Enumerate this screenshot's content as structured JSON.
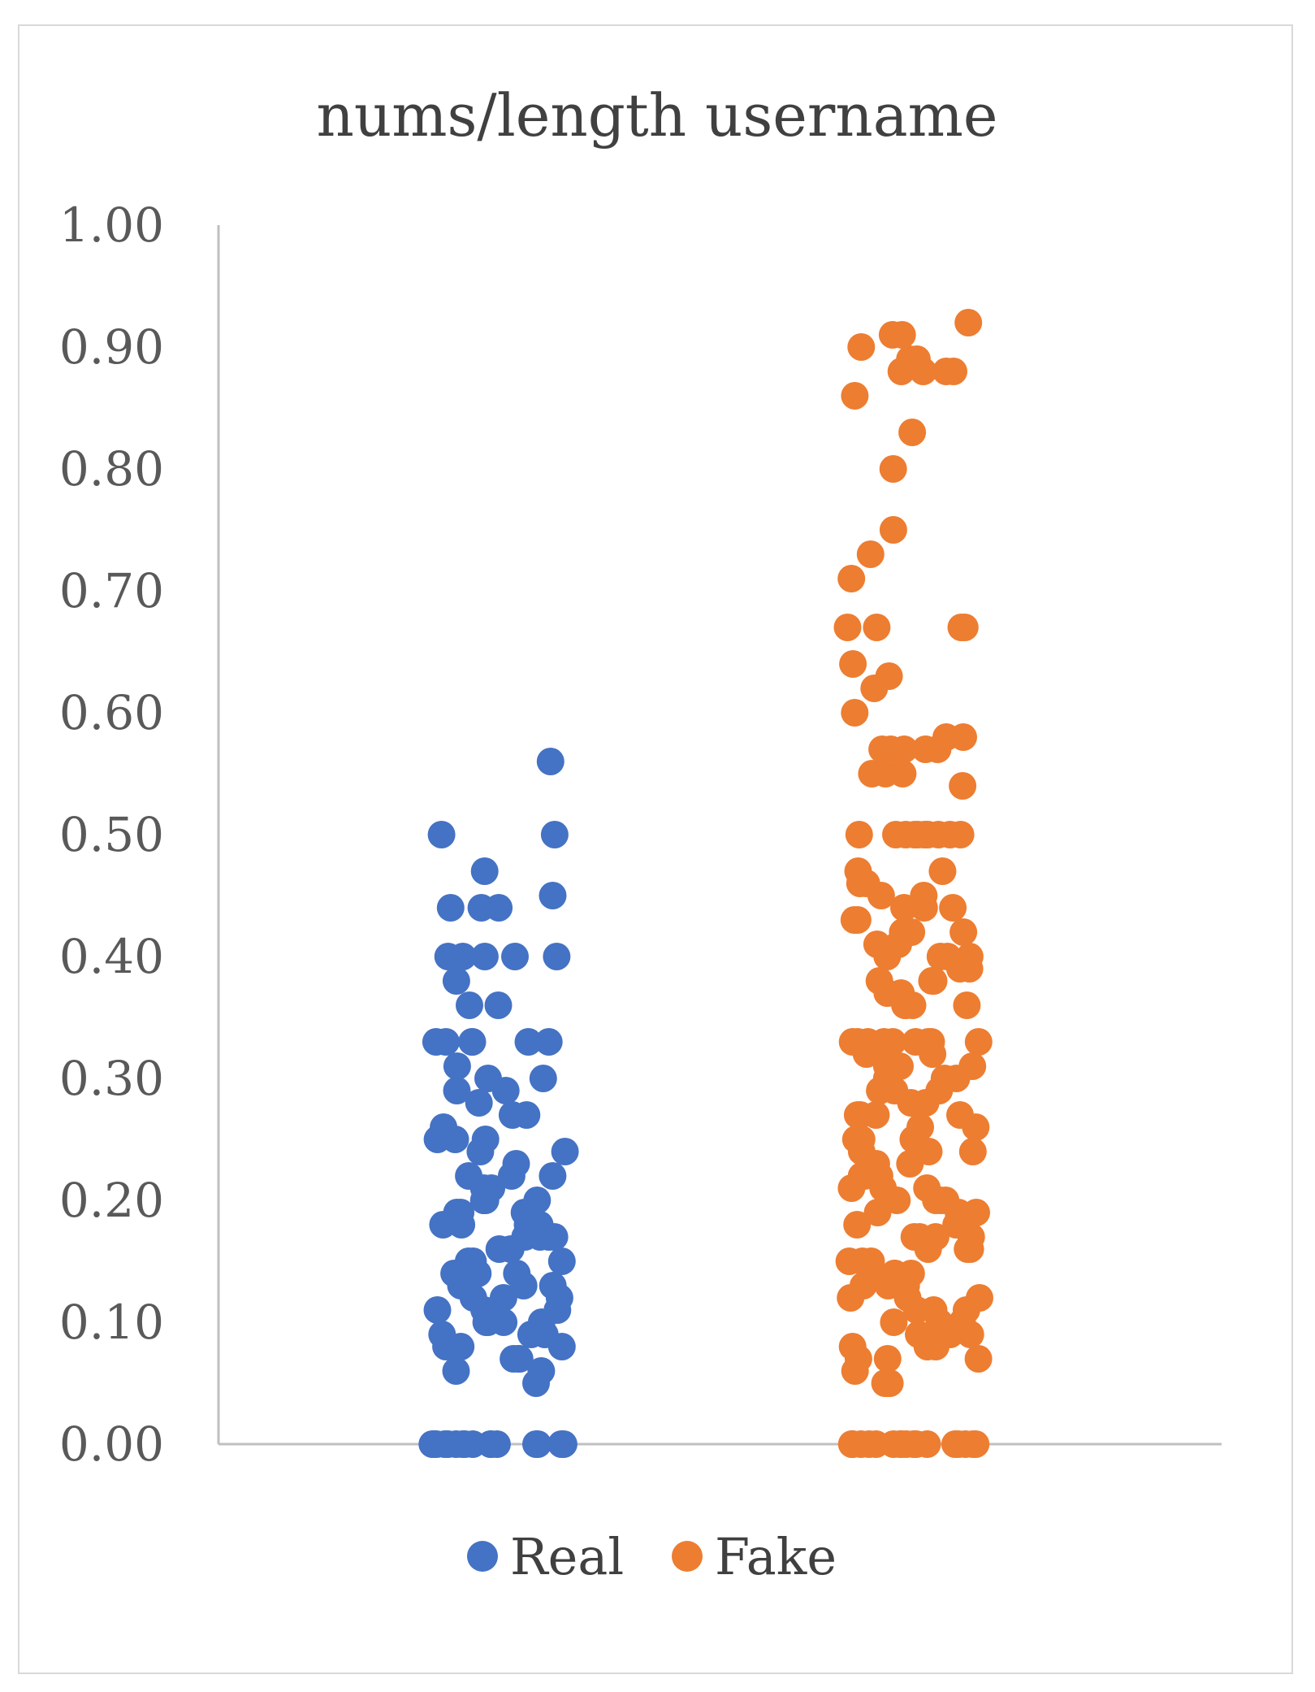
{
  "chart_data": {
    "type": "scatter",
    "title": "nums/length username",
    "ylim": [
      0,
      1
    ],
    "yticks": [
      "0.00",
      "0.10",
      "0.20",
      "0.30",
      "0.40",
      "0.50",
      "0.60",
      "0.70",
      "0.80",
      "0.90",
      "1.00"
    ],
    "grid": false,
    "legend_position": "bottom",
    "series": [
      {
        "name": "Real",
        "color": "#4472C4",
        "category_x": 1,
        "values": [
          0.56,
          0.5,
          0.5,
          0.47,
          0.45,
          0.44,
          0.44,
          0.44,
          0.4,
          0.4,
          0.4,
          0.4,
          0.4,
          0.38,
          0.36,
          0.36,
          0.33,
          0.33,
          0.33,
          0.33,
          0.33,
          0.33,
          0.31,
          0.3,
          0.3,
          0.29,
          0.29,
          0.28,
          0.27,
          0.27,
          0.26,
          0.25,
          0.25,
          0.25,
          0.24,
          0.24,
          0.23,
          0.22,
          0.22,
          0.22,
          0.21,
          0.21,
          0.2,
          0.2,
          0.2,
          0.2,
          0.19,
          0.19,
          0.19,
          0.18,
          0.18,
          0.18,
          0.18,
          0.17,
          0.17,
          0.17,
          0.17,
          0.16,
          0.16,
          0.15,
          0.15,
          0.15,
          0.14,
          0.14,
          0.14,
          0.13,
          0.13,
          0.13,
          0.12,
          0.12,
          0.12,
          0.11,
          0.11,
          0.11,
          0.1,
          0.1,
          0.1,
          0.1,
          0.09,
          0.09,
          0.09,
          0.08,
          0.08,
          0.08,
          0.07,
          0.07,
          0.07,
          0.06,
          0.06,
          0.05,
          0,
          0,
          0,
          0,
          0,
          0,
          0,
          0,
          0,
          0,
          0,
          0,
          0,
          0,
          0,
          0
        ]
      },
      {
        "name": "Fake",
        "color": "#ED7D31",
        "category_x": 2,
        "values": [
          0.92,
          0.91,
          0.91,
          0.9,
          0.89,
          0.89,
          0.88,
          0.88,
          0.88,
          0.88,
          0.86,
          0.83,
          0.8,
          0.75,
          0.73,
          0.71,
          0.67,
          0.67,
          0.67,
          0.67,
          0.64,
          0.63,
          0.62,
          0.6,
          0.58,
          0.58,
          0.57,
          0.57,
          0.57,
          0.57,
          0.57,
          0.55,
          0.55,
          0.55,
          0.54,
          0.5,
          0.5,
          0.5,
          0.5,
          0.5,
          0.5,
          0.5,
          0.5,
          0.5,
          0.5,
          0.5,
          0.47,
          0.47,
          0.46,
          0.46,
          0.45,
          0.45,
          0.44,
          0.44,
          0.44,
          0.43,
          0.43,
          0.42,
          0.42,
          0.42,
          0.41,
          0.41,
          0.4,
          0.4,
          0.4,
          0.4,
          0.39,
          0.39,
          0.38,
          0.38,
          0.38,
          0.37,
          0.37,
          0.36,
          0.36,
          0.36,
          0.36,
          0.33,
          0.33,
          0.33,
          0.33,
          0.33,
          0.33,
          0.33,
          0.33,
          0.33,
          0.32,
          0.32,
          0.31,
          0.31,
          0.31,
          0.3,
          0.3,
          0.3,
          0.3,
          0.29,
          0.29,
          0.29,
          0.28,
          0.28,
          0.27,
          0.27,
          0.27,
          0.27,
          0.26,
          0.26,
          0.25,
          0.25,
          0.25,
          0.25,
          0.24,
          0.24,
          0.24,
          0.23,
          0.23,
          0.22,
          0.22,
          0.22,
          0.21,
          0.21,
          0.21,
          0.2,
          0.2,
          0.2,
          0.2,
          0.19,
          0.19,
          0.19,
          0.18,
          0.18,
          0.18,
          0.17,
          0.17,
          0.17,
          0.17,
          0.16,
          0.16,
          0.16,
          0.15,
          0.15,
          0.15,
          0.14,
          0.14,
          0.14,
          0.14,
          0.13,
          0.13,
          0.13,
          0.12,
          0.12,
          0.12,
          0.11,
          0.11,
          0.11,
          0.1,
          0.1,
          0.1,
          0.09,
          0.09,
          0.09,
          0.08,
          0.08,
          0.08,
          0.07,
          0.07,
          0.07,
          0.06,
          0.05,
          0.05,
          0.05,
          0,
          0,
          0,
          0,
          0,
          0,
          0,
          0,
          0,
          0,
          0,
          0,
          0,
          0,
          0,
          0,
          0,
          0
        ]
      }
    ]
  }
}
